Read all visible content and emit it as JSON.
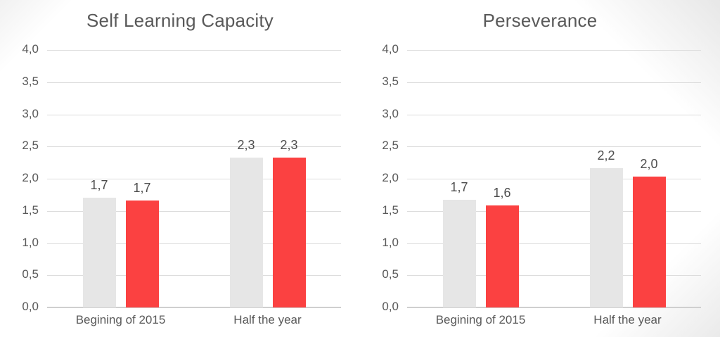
{
  "page": {
    "background": "#FFFFFF",
    "corner_shade": "#E7E7E7"
  },
  "colors": {
    "bar_gray": "#E6E6E6",
    "bar_red": "#FB4141",
    "gridline": "#DCDCDC",
    "baseline": "#CFCFCF",
    "axis_text": "#595959",
    "title_text": "#595959",
    "data_label_text": "#4D4D4D"
  },
  "chart_data": [
    {
      "type": "bar",
      "title": "Self Learning Capacity",
      "categories": [
        "Begining of 2015",
        "Half the year"
      ],
      "series": [
        {
          "name": "gray",
          "color_key": "bar_gray",
          "values": [
            1.7,
            2.33
          ],
          "labels": [
            "1,7",
            "2,3"
          ]
        },
        {
          "name": "red",
          "color_key": "bar_red",
          "values": [
            1.66,
            2.33
          ],
          "labels": [
            "1,7",
            "2,3"
          ]
        }
      ],
      "xlabel": "",
      "ylabel": "",
      "ylim": [
        0,
        4
      ],
      "ytick_step": 0.5,
      "ytick_labels": [
        "0,0",
        "0,5",
        "1,0",
        "1,5",
        "2,0",
        "2,5",
        "3,0",
        "3,5",
        "4,0"
      ],
      "decimal_separator": ",",
      "grid": true,
      "legend_position": "none"
    },
    {
      "type": "bar",
      "title": "Perseverance",
      "categories": [
        "Begining of 2015",
        "Half the year"
      ],
      "series": [
        {
          "name": "gray",
          "color_key": "bar_gray",
          "values": [
            1.67,
            2.16
          ],
          "labels": [
            "1,7",
            "2,2"
          ]
        },
        {
          "name": "red",
          "color_key": "bar_red",
          "values": [
            1.58,
            2.03
          ],
          "labels": [
            "1,6",
            "2,0"
          ]
        }
      ],
      "xlabel": "",
      "ylabel": "",
      "ylim": [
        0,
        4
      ],
      "ytick_step": 0.5,
      "ytick_labels": [
        "0,0",
        "0,5",
        "1,0",
        "1,5",
        "2,0",
        "2,5",
        "3,0",
        "3,5",
        "4,0"
      ],
      "decimal_separator": ",",
      "grid": true,
      "legend_position": "none"
    }
  ]
}
